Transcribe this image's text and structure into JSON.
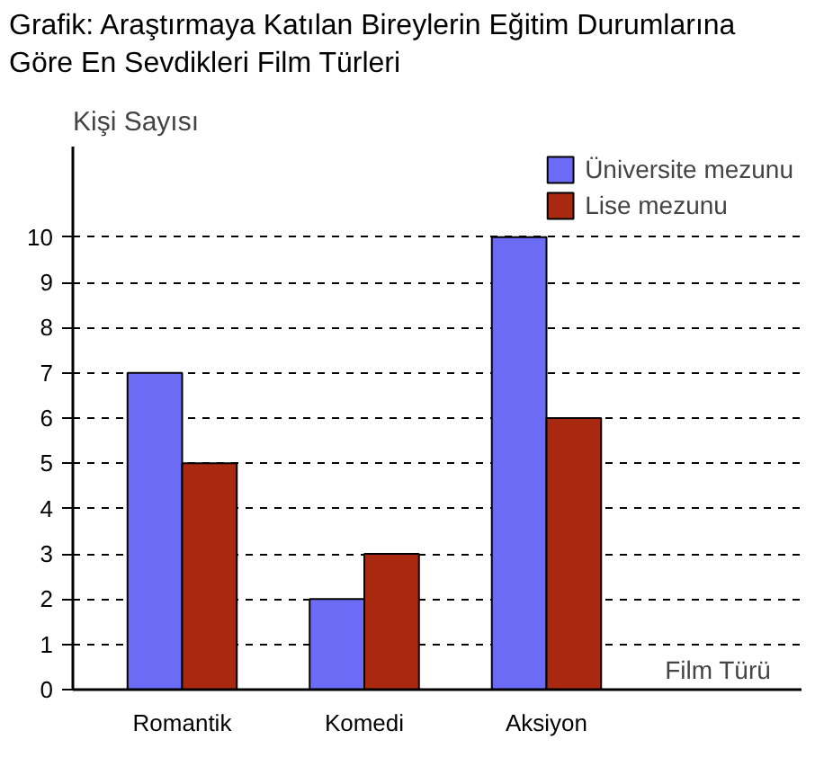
{
  "chart_data": {
    "type": "bar",
    "title": "Grafik: Araştırmaya Katılan Bireylerin Eğitim Durumlarına Göre En Sevdikleri Film Türleri",
    "xlabel": "Film Türü",
    "ylabel": "Kişi Sayısı",
    "categories": [
      "Romantik",
      "Komedi",
      "Aksiyon"
    ],
    "series": [
      {
        "name": "Üniversite mezunu",
        "color": "#6b6bf5",
        "values": [
          7,
          2,
          10
        ]
      },
      {
        "name": "Lise mezunu",
        "color": "#a8290f",
        "values": [
          5,
          3,
          6
        ]
      }
    ],
    "ylim": [
      0,
      12
    ],
    "yticks": [
      0,
      1,
      2,
      3,
      4,
      5,
      6,
      7,
      8,
      9,
      10
    ],
    "grid": "y",
    "legend": "top right"
  }
}
